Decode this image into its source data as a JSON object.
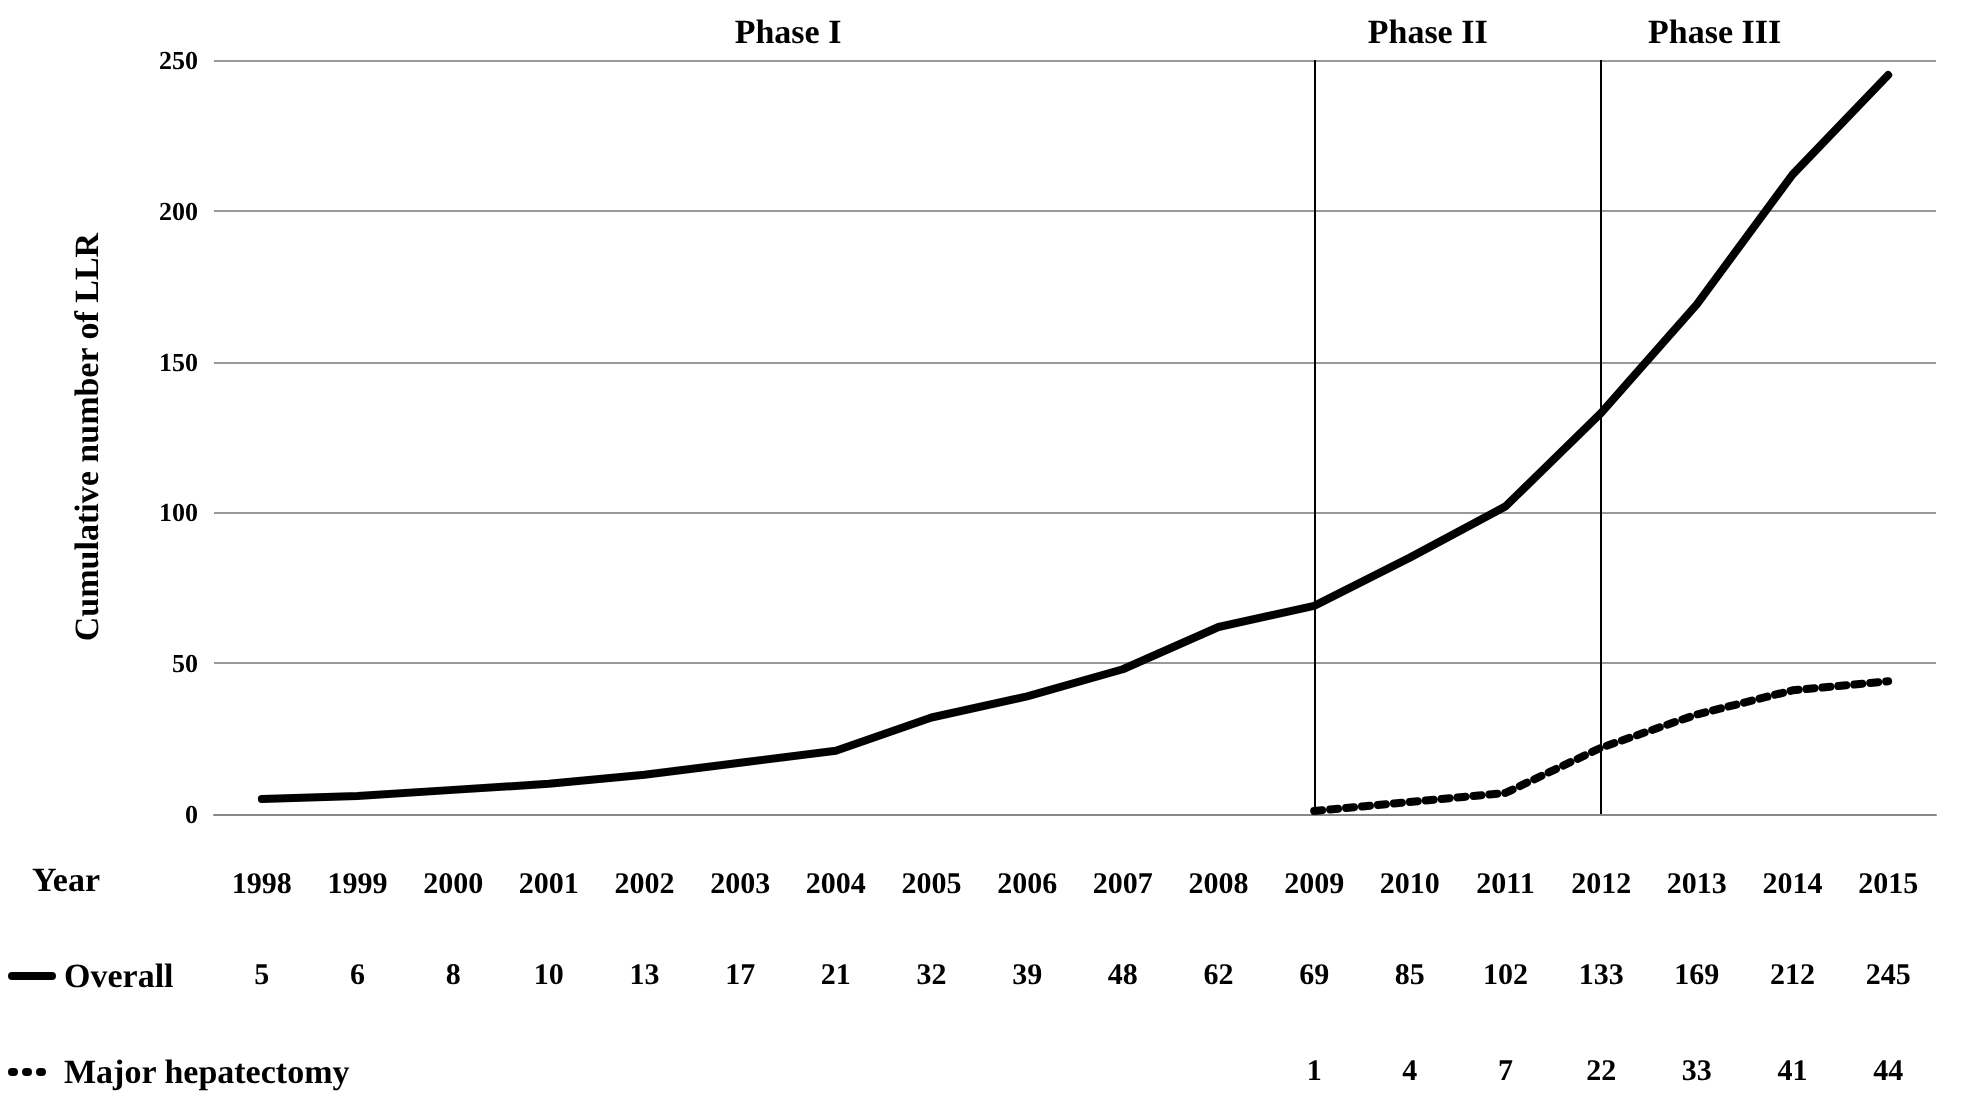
{
  "chart_data": {
    "type": "line",
    "xlabel": "Year",
    "ylabel": "Cumulative number of LLR",
    "categories": [
      "1998",
      "1999",
      "2000",
      "2001",
      "2002",
      "2003",
      "2004",
      "2005",
      "2006",
      "2007",
      "2008",
      "2009",
      "2010",
      "2011",
      "2012",
      "2013",
      "2014",
      "2015"
    ],
    "series": [
      {
        "name": "Overall",
        "color": "#000000",
        "line_style": "solid",
        "values": [
          5,
          6,
          8,
          10,
          13,
          17,
          21,
          32,
          39,
          48,
          62,
          69,
          85,
          102,
          133,
          169,
          212,
          245
        ]
      },
      {
        "name": "Major hepatectomy",
        "color": "#000000",
        "line_style": "dotted",
        "values": [
          null,
          null,
          null,
          null,
          null,
          null,
          null,
          null,
          null,
          null,
          null,
          1,
          4,
          7,
          22,
          33,
          41,
          44
        ]
      }
    ],
    "ylim": [
      0,
      250
    ],
    "yticks": [
      0,
      50,
      100,
      150,
      200,
      250
    ],
    "grid": "y",
    "legend": "bottom left",
    "marker": "none",
    "data_labels": true,
    "ref_lines": [
      {
        "axis": "x",
        "value": "2009",
        "color": "#000000"
      },
      {
        "axis": "x",
        "value": "2012",
        "color": "#000000"
      }
    ],
    "annotations": [
      "Phase I",
      "Phase II",
      "Phase III"
    ]
  }
}
